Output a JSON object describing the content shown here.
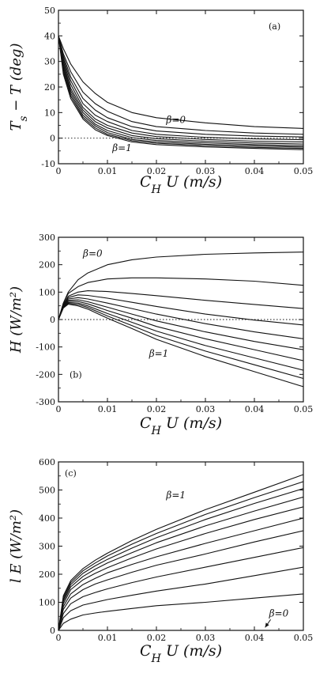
{
  "chart_data": [
    {
      "type": "line",
      "panel_label": "(a)",
      "ylabel": "T_s − T (deg)",
      "xlabel": "C_H U (m/s)",
      "xlim": [
        0,
        0.05
      ],
      "ylim": [
        -10,
        50
      ],
      "xticks": [
        "0",
        "0.01",
        "0.02",
        "0.03",
        "0.04",
        "0.05"
      ],
      "yticks": [
        "-10",
        "0",
        "10",
        "20",
        "30",
        "40",
        "50"
      ],
      "zero_line": true,
      "x": [
        0,
        0.001,
        0.0025,
        0.005,
        0.0075,
        0.01,
        0.015,
        0.02,
        0.03,
        0.04,
        0.05
      ],
      "series": [
        {
          "values": [
            40,
            35,
            29,
            22,
            17.5,
            14,
            10,
            8,
            6,
            4.5,
            3.8
          ]
        },
        {
          "values": [
            40,
            33,
            26,
            18,
            13.5,
            10.5,
            6.5,
            4.5,
            3,
            2,
            1.5
          ]
        },
        {
          "values": [
            40,
            32,
            24,
            15.5,
            11,
            8,
            4.5,
            2.8,
            1.5,
            0.8,
            0.5
          ]
        },
        {
          "values": [
            40,
            31,
            22.5,
            13.5,
            9,
            6.5,
            3,
            1.5,
            0.3,
            -0.3,
            -0.6
          ]
        },
        {
          "values": [
            40,
            30,
            21,
            12,
            7.5,
            5,
            2,
            0.6,
            -0.5,
            -1.2,
            -1.5
          ]
        },
        {
          "values": [
            40,
            29,
            19.5,
            11,
            6.5,
            4,
            1,
            -0.2,
            -1.2,
            -1.9,
            -2.3
          ]
        },
        {
          "values": [
            40,
            28,
            18.5,
            10,
            5.5,
            3,
            0.2,
            -0.9,
            -1.8,
            -2.5,
            -3
          ]
        },
        {
          "values": [
            40,
            27,
            17.5,
            9,
            4.8,
            2.2,
            -0.5,
            -1.5,
            -2.4,
            -3,
            -3.5
          ]
        },
        {
          "values": [
            40,
            26,
            16.5,
            8.2,
            4,
            1.5,
            -1,
            -2,
            -2.9,
            -3.6,
            -4
          ]
        },
        {
          "values": [
            40,
            25,
            15.5,
            7.5,
            3.3,
            1,
            -1.5,
            -2.5,
            -3.4,
            -4,
            -4.5
          ]
        }
      ],
      "annotations": [
        {
          "text": "β=0",
          "x": 0.022,
          "y": 6
        },
        {
          "text": "β=1",
          "x": 0.011,
          "y": -5
        }
      ]
    },
    {
      "type": "line",
      "panel_label": "(b)",
      "ylabel": "H (W/m²)",
      "xlabel": "C_H U (m/s)",
      "xlim": [
        0,
        0.05
      ],
      "ylim": [
        -300,
        300
      ],
      "xticks": [
        "0",
        "0.01",
        "0.02",
        "0.03",
        "0.04",
        "0.05"
      ],
      "yticks": [
        "-300",
        "-200",
        "-100",
        "0",
        "100",
        "200",
        "300"
      ],
      "zero_line": true,
      "x": [
        0,
        0.001,
        0.002,
        0.004,
        0.006,
        0.01,
        0.015,
        0.02,
        0.03,
        0.04,
        0.05
      ],
      "series": [
        {
          "values": [
            0,
            60,
            100,
            145,
            170,
            200,
            218,
            228,
            238,
            243,
            246
          ]
        },
        {
          "values": [
            0,
            60,
            95,
            120,
            135,
            148,
            152,
            152,
            148,
            140,
            125
          ]
        },
        {
          "values": [
            0,
            55,
            85,
            100,
            105,
            102,
            95,
            87,
            70,
            55,
            40
          ]
        },
        {
          "values": [
            0,
            55,
            80,
            90,
            88,
            78,
            63,
            48,
            20,
            -2,
            -20
          ]
        },
        {
          "values": [
            0,
            52,
            75,
            80,
            75,
            60,
            40,
            20,
            -15,
            -45,
            -70
          ]
        },
        {
          "values": [
            0,
            50,
            70,
            72,
            65,
            45,
            20,
            -5,
            -45,
            -80,
            -110
          ]
        },
        {
          "values": [
            0,
            48,
            66,
            66,
            57,
            33,
            5,
            -25,
            -70,
            -110,
            -150
          ]
        },
        {
          "values": [
            0,
            46,
            62,
            60,
            50,
            22,
            -10,
            -42,
            -95,
            -140,
            -185
          ]
        },
        {
          "values": [
            0,
            44,
            59,
            55,
            44,
            13,
            -22,
            -58,
            -115,
            -165,
            -215
          ]
        },
        {
          "values": [
            0,
            42,
            56,
            50,
            38,
            5,
            -33,
            -72,
            -135,
            -190,
            -245
          ]
        }
      ],
      "annotations": [
        {
          "text": "β=0",
          "x": 0.005,
          "y": 230
        },
        {
          "text": "β=1",
          "x": 0.0185,
          "y": -135
        }
      ]
    },
    {
      "type": "line",
      "panel_label": "(c)",
      "ylabel": "l E (W/m²)",
      "xlabel": "C_H U (m/s)",
      "xlim": [
        0,
        0.05
      ],
      "ylim": [
        0,
        600
      ],
      "xticks": [
        "0",
        "0.01",
        "0.02",
        "0.03",
        "0.04",
        "0.05"
      ],
      "yticks": [
        "0",
        "100",
        "200",
        "300",
        "400",
        "500",
        "600"
      ],
      "zero_line": false,
      "x": [
        0,
        0.001,
        0.0025,
        0.005,
        0.0075,
        0.01,
        0.015,
        0.02,
        0.03,
        0.04,
        0.05
      ],
      "series": [
        {
          "values": [
            0,
            25,
            40,
            55,
            62,
            68,
            78,
            88,
            100,
            115,
            130
          ]
        },
        {
          "values": [
            0,
            45,
            70,
            90,
            100,
            110,
            125,
            140,
            165,
            195,
            225
          ]
        },
        {
          "values": [
            0,
            60,
            95,
            120,
            135,
            148,
            170,
            190,
            225,
            260,
            295
          ]
        },
        {
          "values": [
            0,
            75,
            115,
            145,
            165,
            180,
            207,
            232,
            272,
            315,
            355
          ]
        },
        {
          "values": [
            0,
            85,
            130,
            163,
            185,
            205,
            235,
            262,
            310,
            355,
            400
          ]
        },
        {
          "values": [
            0,
            95,
            145,
            180,
            203,
            223,
            258,
            290,
            345,
            395,
            440
          ]
        },
        {
          "values": [
            0,
            103,
            155,
            192,
            218,
            240,
            277,
            312,
            372,
            425,
            475
          ]
        },
        {
          "values": [
            0,
            110,
            163,
            203,
            230,
            253,
            293,
            330,
            395,
            452,
            505
          ]
        },
        {
          "values": [
            0,
            117,
            170,
            212,
            240,
            265,
            307,
            345,
            413,
            473,
            530
          ]
        },
        {
          "values": [
            0,
            123,
            177,
            220,
            250,
            275,
            320,
            360,
            430,
            492,
            555
          ]
        }
      ],
      "annotations": [
        {
          "text": "β=1",
          "x": 0.022,
          "y": 470
        },
        {
          "text": "β=0",
          "x": 0.043,
          "y": 50
        }
      ]
    }
  ]
}
